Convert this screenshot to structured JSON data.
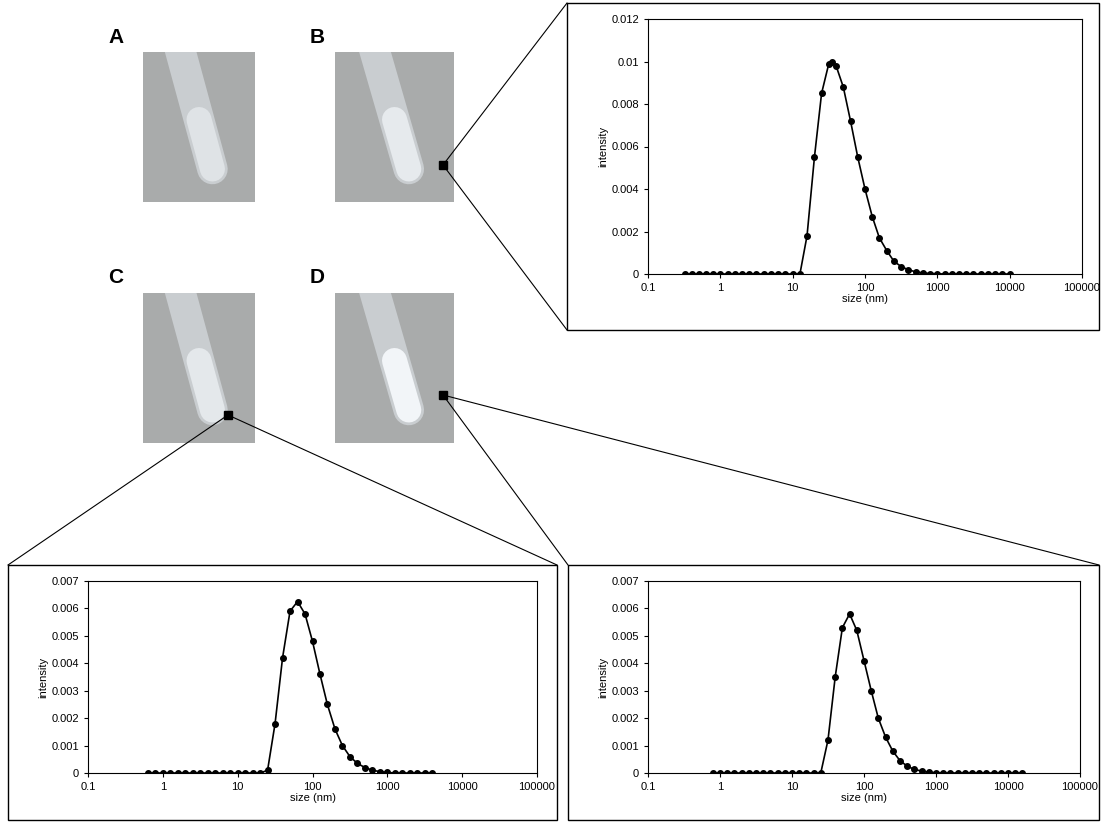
{
  "panel_labels": [
    "A",
    "B",
    "C",
    "D"
  ],
  "chart_data": [
    {
      "type": "line",
      "xlabel": "size (nm)",
      "ylabel": "intensity",
      "log": "x",
      "grid": false,
      "color": "#000000",
      "marker": "o",
      "line_style": "solid",
      "xlim": [
        0.1,
        100000
      ],
      "xticks": [
        0.1,
        1,
        10,
        100,
        1000,
        10000,
        100000
      ],
      "ylim": [
        0,
        0.012
      ],
      "yticks": [
        0,
        0.002,
        0.004,
        0.006,
        0.008,
        0.01,
        0.012
      ],
      "x": [
        0.32,
        0.4,
        0.5,
        0.63,
        0.79,
        1,
        1.26,
        1.58,
        2,
        2.51,
        3.16,
        3.98,
        5.01,
        6.31,
        7.94,
        10,
        12.6,
        15.8,
        20,
        25.1,
        31.6,
        35.5,
        39.8,
        50.1,
        63.1,
        79.4,
        100,
        126,
        158,
        200,
        251,
        316,
        398,
        501,
        631,
        794,
        1000,
        1259,
        1585,
        1995,
        2512,
        3162,
        3981,
        5012,
        6310,
        7943,
        10000
      ],
      "values": [
        0,
        0,
        0,
        0,
        0,
        0,
        0,
        0,
        0,
        0,
        0,
        0,
        0,
        0,
        0,
        0,
        0,
        0.0018,
        0.0055,
        0.0085,
        0.0099,
        0.01,
        0.0098,
        0.0088,
        0.0072,
        0.0055,
        0.004,
        0.0027,
        0.0017,
        0.0011,
        0.0006,
        0.00035,
        0.0002,
        0.0001,
        5e-05,
        2e-05,
        1e-05,
        0,
        0,
        0,
        0,
        0,
        0,
        0,
        0,
        0,
        0
      ]
    },
    {
      "type": "line",
      "xlabel": "size (nm)",
      "ylabel": "intensity",
      "log": "x",
      "grid": false,
      "color": "#000000",
      "marker": "o",
      "line_style": "solid",
      "xlim": [
        0.1,
        100000
      ],
      "xticks": [
        0.1,
        1,
        10,
        100,
        1000,
        10000,
        100000
      ],
      "ylim": [
        0,
        0.007
      ],
      "yticks": [
        0,
        0.001,
        0.002,
        0.003,
        0.004,
        0.005,
        0.006,
        0.007
      ],
      "x": [
        0.63,
        0.79,
        1,
        1.26,
        1.58,
        2,
        2.51,
        3.16,
        3.98,
        5.01,
        6.31,
        7.94,
        10,
        12.6,
        15.8,
        20,
        25.1,
        31.6,
        39.8,
        50.1,
        63.1,
        79.4,
        100,
        126,
        158,
        200,
        251,
        316,
        398,
        501,
        631,
        794,
        1000,
        1259,
        1585,
        1995,
        2512,
        3162,
        3981
      ],
      "values": [
        0,
        0,
        0,
        0,
        0,
        0,
        0,
        0,
        0,
        0,
        0,
        0,
        0,
        0,
        0,
        0,
        0.0001,
        0.0018,
        0.0042,
        0.0059,
        0.00625,
        0.0058,
        0.0048,
        0.0036,
        0.0025,
        0.0016,
        0.001,
        0.0006,
        0.00035,
        0.0002,
        0.0001,
        5e-05,
        2e-05,
        0,
        0,
        0,
        0,
        0,
        0
      ]
    },
    {
      "type": "line",
      "xlabel": "size (nm)",
      "ylabel": "intensity",
      "log": "x",
      "grid": false,
      "color": "#000000",
      "marker": "o",
      "line_style": "solid",
      "xlim": [
        0.1,
        100000
      ],
      "xticks": [
        0.1,
        1,
        10,
        100,
        1000,
        10000,
        100000
      ],
      "ylim": [
        0,
        0.007
      ],
      "yticks": [
        0,
        0.001,
        0.002,
        0.003,
        0.004,
        0.005,
        0.006,
        0.007
      ],
      "x": [
        0.79,
        1,
        1.26,
        1.58,
        2,
        2.51,
        3.16,
        3.98,
        5.01,
        6.31,
        7.94,
        10,
        12.6,
        15.8,
        20,
        25.1,
        31.6,
        39.8,
        50.1,
        63.1,
        79.4,
        100,
        126,
        158,
        200,
        251,
        316,
        398,
        501,
        631,
        794,
        1000,
        1259,
        1585,
        1995,
        2512,
        3162,
        3981,
        5012,
        6310,
        7943,
        10000,
        12589,
        15849
      ],
      "values": [
        0,
        0,
        0,
        0,
        0,
        0,
        0,
        0,
        0,
        0,
        0,
        0,
        0,
        0,
        0,
        0,
        0.0012,
        0.0035,
        0.0053,
        0.0058,
        0.0052,
        0.0041,
        0.003,
        0.002,
        0.0013,
        0.0008,
        0.00045,
        0.00025,
        0.00013,
        7e-05,
        3e-05,
        1e-05,
        0,
        0,
        0,
        0,
        0,
        0,
        0,
        0,
        0,
        0,
        0,
        0
      ]
    }
  ]
}
